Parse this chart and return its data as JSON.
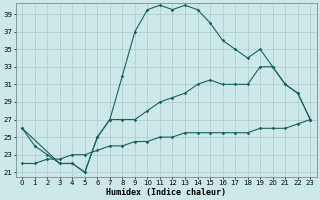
{
  "xlabel": "Humidex (Indice chaleur)",
  "bg_color": "#cce8e8",
  "grid_color": "#aacccc",
  "line_color": "#1a6060",
  "xlim": [
    -0.5,
    23.5
  ],
  "ylim": [
    20.5,
    40.2
  ],
  "xticks": [
    0,
    1,
    2,
    3,
    4,
    5,
    6,
    7,
    8,
    9,
    10,
    11,
    12,
    13,
    14,
    15,
    16,
    17,
    18,
    19,
    20,
    21,
    22,
    23
  ],
  "yticks": [
    21,
    23,
    25,
    27,
    29,
    31,
    33,
    35,
    37,
    39
  ],
  "curve1_x": [
    0,
    1,
    2,
    3,
    4,
    5,
    6,
    7,
    8,
    9,
    10,
    11,
    12,
    13,
    14,
    15,
    16,
    17,
    18,
    19,
    20,
    21,
    22,
    23
  ],
  "curve1_y": [
    26,
    24,
    23,
    22,
    22,
    21,
    25,
    27,
    32,
    37,
    39.5,
    40,
    39.5,
    40,
    39.5,
    38,
    36,
    35,
    34,
    35,
    33,
    31,
    30,
    27
  ],
  "curve2_x": [
    0,
    3,
    4,
    5,
    6,
    7,
    8,
    9,
    10,
    11,
    12,
    13,
    14,
    15,
    16,
    17,
    18,
    19,
    20,
    21,
    22,
    23
  ],
  "curve2_y": [
    26,
    22,
    22,
    21,
    25,
    27,
    27,
    27,
    28,
    29,
    29.5,
    30,
    31,
    31.5,
    31,
    31,
    31,
    33,
    33,
    31,
    30,
    27
  ],
  "curve3_x": [
    0,
    1,
    2,
    3,
    4,
    5,
    6,
    7,
    8,
    9,
    10,
    11,
    12,
    13,
    14,
    15,
    16,
    17,
    18,
    19,
    20,
    21,
    22,
    23
  ],
  "curve3_y": [
    22,
    22,
    22.5,
    22.5,
    23,
    23,
    23.5,
    24,
    24,
    24.5,
    24.5,
    25,
    25,
    25.5,
    25.5,
    25.5,
    25.5,
    25.5,
    25.5,
    26,
    26,
    26,
    26.5,
    27
  ]
}
